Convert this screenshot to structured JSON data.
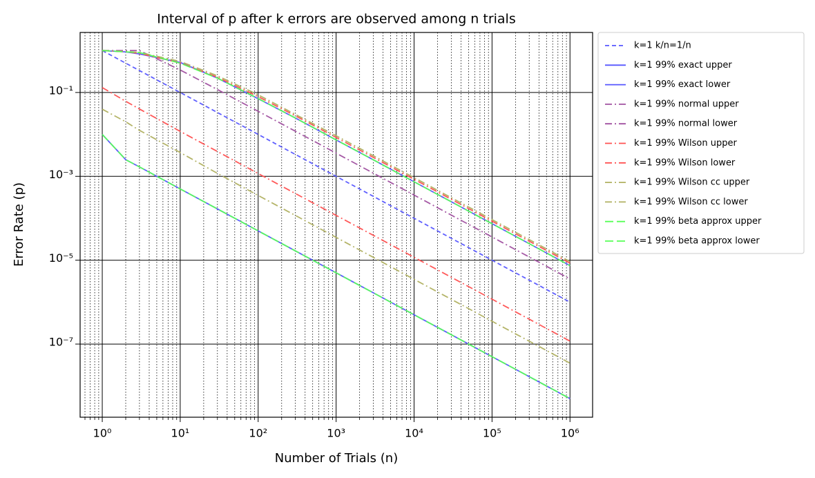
{
  "chart_data": {
    "type": "line",
    "title": "Interval of p after k errors are observed among n trials",
    "xlabel": "Number of Trials (n)",
    "ylabel": "Error Rate (p)",
    "log_x": true,
    "log_y": true,
    "grid": true,
    "legend": "outside right",
    "x": [
      1,
      2,
      3,
      10,
      30,
      100,
      300,
      1000,
      3000,
      10000,
      30000,
      100000,
      300000,
      1000000
    ],
    "series": [
      {
        "name": "k=1 k/n=1/n",
        "color": "#5555ff",
        "linestyle": "dashed",
        "values": [
          1,
          0.5,
          0.3333,
          0.1,
          0.03333,
          0.01,
          0.003333,
          0.001,
          0.0003333,
          0.0001,
          3.333e-05,
          1e-05,
          3.333e-06,
          1e-06
        ]
      },
      {
        "name": "k=1 99% exact upper",
        "color": "#5555ff",
        "linestyle": "solid",
        "values": [
          1,
          0.929,
          0.83,
          0.52,
          0.22,
          0.071,
          0.0246,
          0.0074,
          0.00248,
          0.000743,
          0.000248,
          7.43e-05,
          2.48e-05,
          7.43e-06
        ]
      },
      {
        "name": "k=1 99% exact lower",
        "color": "#5555ff",
        "linestyle": "solid",
        "values": [
          0.01,
          0.0025,
          0.00168,
          0.000501,
          0.000167,
          5e-05,
          1.67e-05,
          5e-06,
          1.67e-06,
          5e-07,
          1.67e-07,
          5e-08,
          1.67e-08,
          5e-09
        ]
      },
      {
        "name": "k=1 99% normal upper",
        "color": "#a050a0",
        "linestyle": "dashdot",
        "values": [
          1,
          1,
          1,
          0.344,
          0.1177,
          0.0356,
          0.01191,
          0.003575,
          0.001192,
          0.0003576,
          0.0001192,
          3.576e-05,
          1.192e-05,
          3.576e-06
        ]
      },
      {
        "name": "k=1 99% normal lower",
        "color": "#a050a0",
        "linestyle": "dashdot",
        "values": [
          1,
          null,
          null,
          null,
          null,
          null,
          null,
          null,
          null,
          null,
          null,
          null,
          null,
          null
        ]
      },
      {
        "name": "k=1 99% Wilson upper",
        "color": "#ff5050",
        "linestyle": "dashdot",
        "values": [
          1,
          0.938,
          0.856,
          0.507,
          0.232,
          0.0798,
          0.02778,
          0.008464,
          0.002834,
          0.0008515,
          0.000284,
          8.52e-05,
          2.84e-05,
          8.52e-06
        ]
      },
      {
        "name": "k=1 99% Wilson lower",
        "color": "#ff5050",
        "linestyle": "dashdot",
        "values": [
          0.131,
          0.0617,
          0.0403,
          0.01181,
          0.003917,
          0.001168,
          0.00039,
          0.0001172,
          3.92e-05,
          1.175e-05,
          3.92e-06,
          1.175e-06,
          3.92e-07,
          1.175e-07
        ]
      },
      {
        "name": "k=1 99% Wilson cc upper",
        "color": "#b0b060",
        "linestyle": "dashdot",
        "values": [
          1,
          0.95,
          0.9,
          0.55,
          0.25,
          0.088,
          0.03,
          0.0093,
          0.0031,
          0.00093,
          0.00031,
          9.3e-05,
          3.1e-05,
          9.3e-06
        ]
      },
      {
        "name": "k=1 99% Wilson cc lower",
        "color": "#b0b060",
        "linestyle": "dashdot",
        "values": [
          0.04,
          0.02,
          0.0125,
          0.0037,
          0.00118,
          0.00035,
          0.000117,
          3.5e-05,
          1.17e-05,
          3.5e-06,
          1.17e-06,
          3.5e-07,
          1.17e-07,
          3.5e-08
        ]
      },
      {
        "name": "k=1 99% beta approx upper",
        "color": "#55ff55",
        "linestyle": "longdash",
        "values": [
          1,
          0.93,
          0.9,
          0.5,
          0.22,
          0.072,
          0.0246,
          0.0074,
          0.00248,
          0.00074,
          0.000248,
          7.4e-05,
          2.48e-05,
          7.4e-06
        ]
      },
      {
        "name": "k=1 99% beta approx lower",
        "color": "#55ff55",
        "linestyle": "longdash",
        "values": [
          0.01,
          0.0025,
          0.00168,
          0.0005,
          0.000167,
          5e-05,
          1.67e-05,
          5e-06,
          1.67e-06,
          5e-07,
          1.67e-07,
          5e-08,
          1.67e-08,
          5e-09
        ]
      }
    ],
    "xlim": [
      0.52,
      1950000
    ],
    "ylim": [
      1.8e-09,
      2.7
    ],
    "xticks": [
      {
        "value": 1,
        "label": "10⁰"
      },
      {
        "value": 10,
        "label": "10¹"
      },
      {
        "value": 100,
        "label": "10²"
      },
      {
        "value": 1000,
        "label": "10³"
      },
      {
        "value": 10000,
        "label": "10⁴"
      },
      {
        "value": 100000,
        "label": "10⁵"
      },
      {
        "value": 1000000,
        "label": "10⁶"
      }
    ],
    "xminorticks": [
      0.6,
      0.7,
      0.8,
      0.9,
      2,
      3,
      4,
      5,
      6,
      7,
      8,
      9,
      20,
      30,
      40,
      50,
      60,
      70,
      80,
      90,
      200,
      300,
      400,
      500,
      600,
      700,
      800,
      900,
      2000,
      3000,
      4000,
      5000,
      6000,
      7000,
      8000,
      9000,
      20000,
      30000,
      40000,
      50000,
      60000,
      70000,
      80000,
      90000,
      200000,
      300000,
      400000,
      500000,
      600000,
      700000,
      800000,
      900000
    ],
    "yticks": [
      {
        "value": 0.1,
        "label": "10⁻¹"
      },
      {
        "value": 0.001,
        "label": "10⁻³"
      },
      {
        "value": 1e-05,
        "label": "10⁻⁵"
      },
      {
        "value": 1e-07,
        "label": "10⁻⁷"
      }
    ]
  }
}
